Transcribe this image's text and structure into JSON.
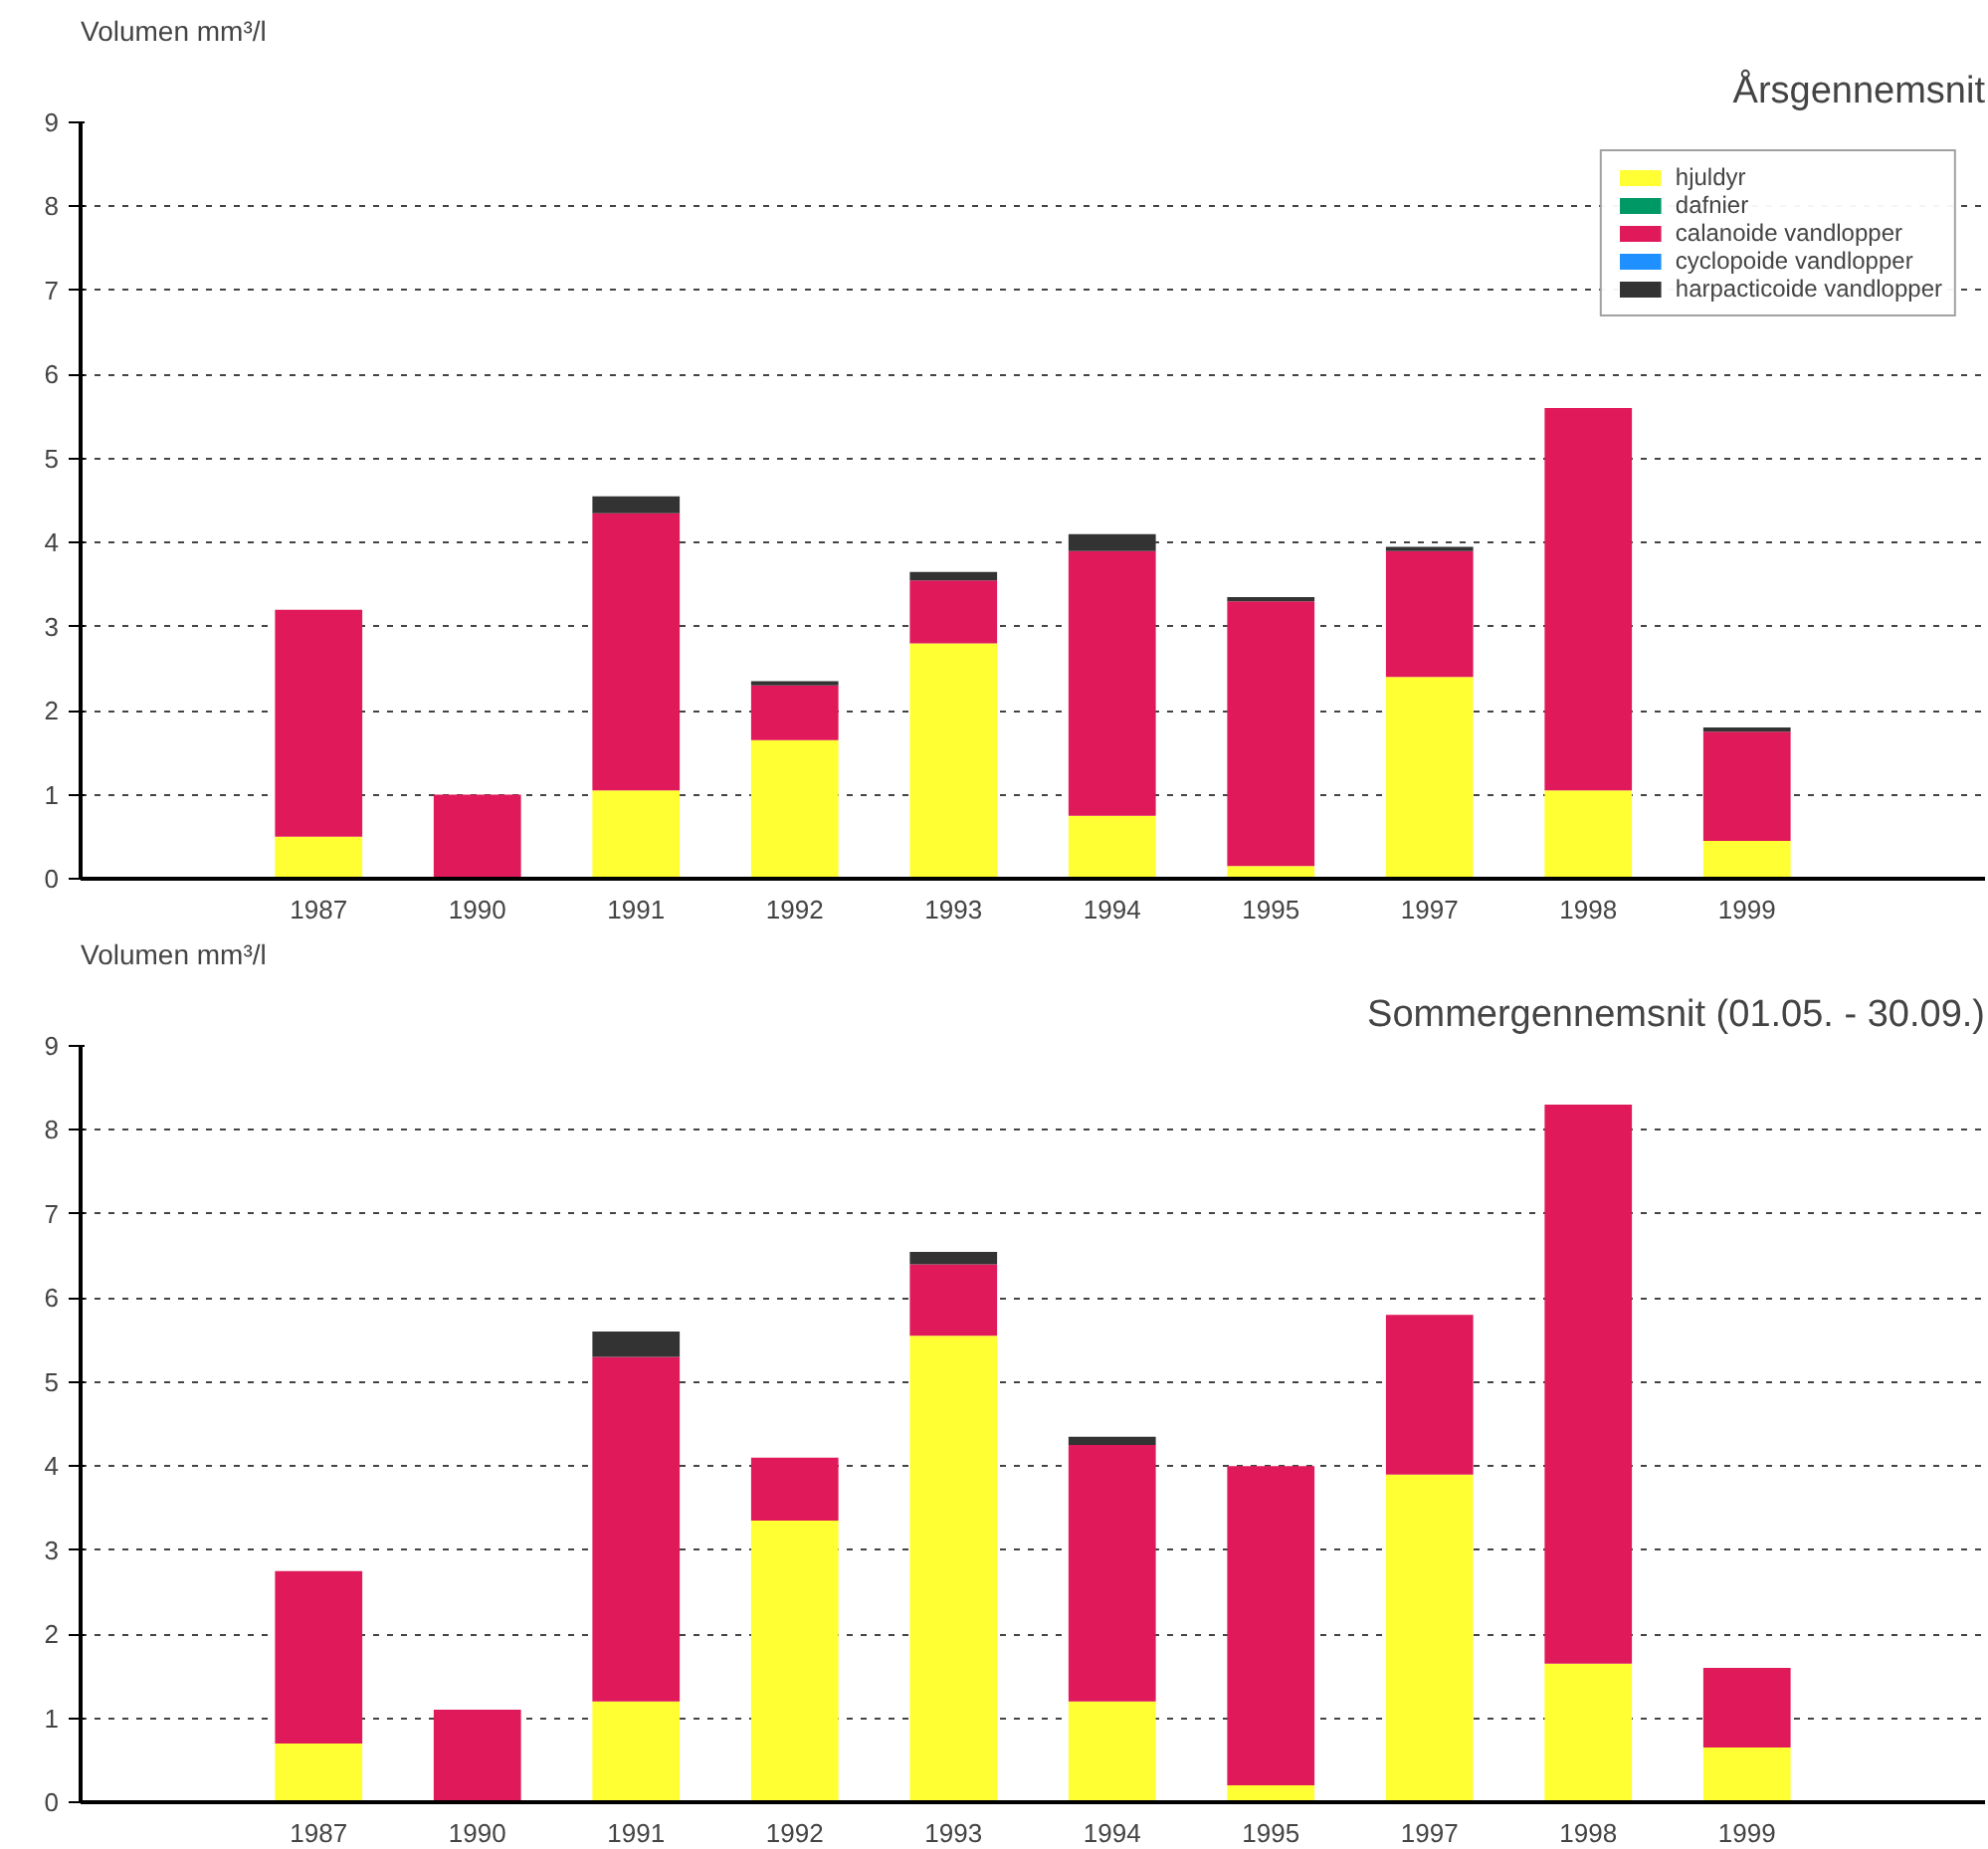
{
  "chart_data": [
    {
      "type": "bar",
      "stacked": true,
      "title": "Årsgennemsnit",
      "ylabel": "Volumen mm³/l",
      "categories": [
        null,
        "1987",
        "1990",
        "1991",
        "1992",
        "1993",
        "1994",
        "1995",
        "1997",
        "1998",
        "1999",
        null
      ],
      "series": [
        {
          "name": "hjuldyr",
          "color": "#ffff33",
          "values": [
            null,
            0.5,
            0,
            1.05,
            1.65,
            2.8,
            0.75,
            0.15,
            2.4,
            1.05,
            0.45,
            null
          ]
        },
        {
          "name": "dafnier",
          "color": "#009966",
          "values": [
            null,
            0,
            0,
            0,
            0,
            0,
            0,
            0,
            0,
            0,
            0,
            null
          ]
        },
        {
          "name": "calanoide vandlopper",
          "color": "#e0195a",
          "values": [
            null,
            2.7,
            1.0,
            3.3,
            0.65,
            0.75,
            3.15,
            3.15,
            1.5,
            4.55,
            1.3,
            null
          ]
        },
        {
          "name": "cyclopoide vandlopper",
          "color": "#1e90ff",
          "values": [
            null,
            0,
            0,
            0,
            0,
            0,
            0,
            0,
            0,
            0,
            0,
            null
          ]
        },
        {
          "name": "harpacticoide vandlopper",
          "color": "#333333",
          "values": [
            null,
            0,
            0,
            0.2,
            0.05,
            0.1,
            0.2,
            0.05,
            0.05,
            0,
            0.05,
            null
          ]
        }
      ],
      "ylim": [
        0,
        9
      ],
      "yticks": [
        0,
        1,
        2,
        3,
        4,
        5,
        6,
        7,
        8,
        9
      ],
      "grid": "y",
      "legend": "top right"
    },
    {
      "type": "bar",
      "stacked": true,
      "title": "Sommergennemsnit (01.05. - 30.09.)",
      "ylabel": "Volumen mm³/l",
      "categories": [
        null,
        "1987",
        "1990",
        "1991",
        "1992",
        "1993",
        "1994",
        "1995",
        "1997",
        "1998",
        "1999",
        null
      ],
      "series": [
        {
          "color": "#ffff33",
          "values": [
            null,
            0.7,
            0,
            1.2,
            3.35,
            5.55,
            1.2,
            0.2,
            3.9,
            1.65,
            0.65,
            null
          ]
        },
        {
          "color": "#e0195a",
          "values": [
            null,
            2.05,
            1.1,
            4.1,
            0.75,
            0.85,
            3.05,
            3.8,
            1.9,
            6.65,
            0.95,
            null
          ]
        },
        {
          "color": "#333333",
          "values": [
            null,
            0,
            0,
            0.3,
            0,
            0.15,
            0.1,
            0,
            0,
            0,
            0,
            null
          ]
        }
      ],
      "ylim": [
        0,
        9
      ],
      "yticks": [
        0,
        1,
        2,
        3,
        4,
        5,
        6,
        7,
        8,
        9
      ],
      "grid": "y"
    }
  ]
}
